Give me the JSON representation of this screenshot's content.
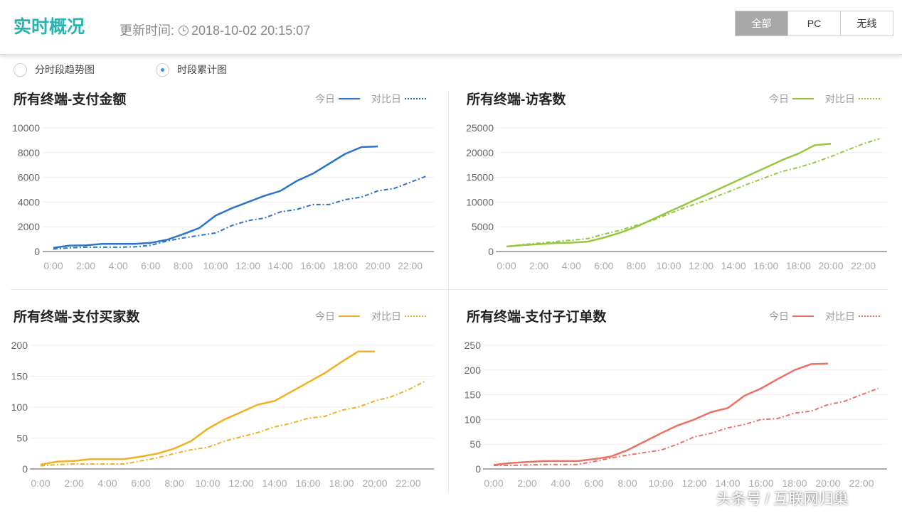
{
  "header": {
    "title": "实时概况",
    "update_label": "更新时间:",
    "update_time": "2018-10-02 20:15:07",
    "segments": [
      "全部",
      "PC",
      "无线"
    ],
    "active_segment": "全部"
  },
  "view_modes": [
    {
      "label": "分时段趋势图",
      "selected": false
    },
    {
      "label": "时段累计图",
      "selected": true
    }
  ],
  "legend": {
    "today": "今日",
    "compare": "对比日"
  },
  "watermark": "头条号 / 互联网归巢",
  "chart_data": [
    {
      "type": "line",
      "title": "所有终端-支付金额",
      "color": "#2b74c9",
      "x_ticks": [
        "0:00",
        "2:00",
        "4:00",
        "6:00",
        "8:00",
        "10:00",
        "12:00",
        "14:00",
        "16:00",
        "18:00",
        "20:00",
        "22:00"
      ],
      "y_ticks": [
        0,
        2000,
        4000,
        6000,
        8000,
        10000
      ],
      "ylim": [
        0,
        10000
      ],
      "grid": true,
      "series": [
        {
          "name": "今日",
          "style": "solid",
          "x_hours": [
            0,
            1,
            2,
            3,
            4,
            5,
            6,
            7,
            8,
            9,
            10,
            11,
            12,
            13,
            14,
            15,
            16,
            17,
            18,
            19,
            20
          ],
          "values": [
            300,
            480,
            500,
            620,
            620,
            620,
            700,
            950,
            1400,
            1900,
            2900,
            3500,
            4000,
            4500,
            4900,
            5700,
            6300,
            7100,
            7900,
            8450,
            8500
          ]
        },
        {
          "name": "对比日",
          "style": "dashdot",
          "x_hours": [
            0,
            1,
            2,
            3,
            4,
            5,
            6,
            7,
            8,
            9,
            10,
            11,
            12,
            13,
            14,
            15,
            16,
            17,
            18,
            19,
            20,
            21,
            22,
            23
          ],
          "values": [
            200,
            300,
            350,
            350,
            350,
            380,
            500,
            850,
            1100,
            1300,
            1500,
            2100,
            2500,
            2700,
            3200,
            3400,
            3800,
            3800,
            4200,
            4400,
            4900,
            5100,
            5600,
            6100
          ]
        }
      ]
    },
    {
      "type": "line",
      "title": "所有终端-访客数",
      "color": "#95c840",
      "x_ticks": [
        "0:00",
        "2:00",
        "4:00",
        "6:00",
        "8:00",
        "10:00",
        "12:00",
        "14:00",
        "16:00",
        "18:00",
        "20:00",
        "22:00"
      ],
      "y_ticks": [
        0,
        5000,
        10000,
        15000,
        20000,
        25000
      ],
      "ylim": [
        0,
        25000
      ],
      "grid": true,
      "series": [
        {
          "name": "今日",
          "style": "solid",
          "x_hours": [
            0,
            1,
            2,
            3,
            4,
            5,
            6,
            7,
            8,
            9,
            10,
            11,
            12,
            13,
            14,
            15,
            16,
            17,
            18,
            19,
            20
          ],
          "values": [
            1000,
            1300,
            1500,
            1700,
            1800,
            2000,
            2800,
            3800,
            5000,
            6500,
            8000,
            9500,
            11000,
            12500,
            14000,
            15500,
            17000,
            18500,
            19800,
            21500,
            21800
          ]
        },
        {
          "name": "对比日",
          "style": "dashdot",
          "x_hours": [
            0,
            1,
            2,
            3,
            4,
            5,
            6,
            7,
            8,
            9,
            10,
            11,
            12,
            13,
            14,
            15,
            16,
            17,
            18,
            19,
            20,
            21,
            22,
            23
          ],
          "values": [
            1000,
            1400,
            1700,
            2000,
            2300,
            2600,
            3500,
            4300,
            5300,
            6300,
            7600,
            8900,
            10000,
            11200,
            12500,
            13800,
            15000,
            16200,
            17000,
            18000,
            19200,
            20500,
            21800,
            22800
          ]
        }
      ]
    },
    {
      "type": "line",
      "title": "所有终端-支付买家数",
      "color": "#f0b022",
      "x_ticks": [
        "0:00",
        "2:00",
        "4:00",
        "6:00",
        "8:00",
        "10:00",
        "12:00",
        "14:00",
        "16:00",
        "18:00",
        "20:00",
        "22:00"
      ],
      "y_ticks": [
        0,
        50,
        100,
        150,
        200
      ],
      "ylim": [
        0,
        200
      ],
      "grid": true,
      "series": [
        {
          "name": "今日",
          "style": "solid",
          "x_hours": [
            0,
            1,
            2,
            3,
            4,
            5,
            6,
            7,
            8,
            9,
            10,
            11,
            12,
            13,
            14,
            15,
            16,
            17,
            18,
            19,
            20
          ],
          "values": [
            7,
            12,
            13,
            16,
            16,
            16,
            20,
            25,
            33,
            45,
            65,
            80,
            92,
            104,
            110,
            125,
            140,
            155,
            173,
            190,
            190
          ]
        },
        {
          "name": "对比日",
          "style": "dashdot",
          "x_hours": [
            0,
            1,
            2,
            3,
            4,
            5,
            6,
            7,
            8,
            9,
            10,
            11,
            12,
            13,
            14,
            15,
            16,
            17,
            18,
            19,
            20,
            21,
            22,
            23
          ],
          "values": [
            5,
            7,
            8,
            8,
            8,
            8,
            13,
            18,
            25,
            31,
            35,
            45,
            52,
            59,
            68,
            74,
            82,
            85,
            95,
            100,
            110,
            117,
            128,
            142
          ]
        }
      ]
    },
    {
      "type": "line",
      "title": "所有终端-支付子订单数",
      "color": "#ec7063",
      "x_ticks": [
        "0:00",
        "2:00",
        "4:00",
        "6:00",
        "8:00",
        "10:00",
        "12:00",
        "14:00",
        "16:00",
        "18:00",
        "20:00",
        "22:00"
      ],
      "y_ticks": [
        0,
        50,
        100,
        150,
        200,
        250
      ],
      "ylim": [
        0,
        250
      ],
      "grid": true,
      "series": [
        {
          "name": "今日",
          "style": "solid",
          "x_hours": [
            0,
            1,
            2,
            3,
            4,
            5,
            6,
            7,
            8,
            9,
            10,
            11,
            12,
            13,
            14,
            15,
            16,
            17,
            18,
            19,
            20
          ],
          "values": [
            8,
            12,
            14,
            16,
            16,
            16,
            20,
            25,
            38,
            55,
            72,
            88,
            100,
            115,
            123,
            148,
            163,
            182,
            200,
            212,
            213
          ]
        },
        {
          "name": "对比日",
          "style": "dashdot",
          "x_hours": [
            0,
            1,
            2,
            3,
            4,
            5,
            6,
            7,
            8,
            9,
            10,
            11,
            12,
            13,
            14,
            15,
            16,
            17,
            18,
            19,
            20,
            21,
            22,
            23
          ],
          "values": [
            7,
            7,
            8,
            9,
            9,
            9,
            15,
            22,
            28,
            33,
            38,
            50,
            65,
            72,
            83,
            90,
            100,
            102,
            113,
            117,
            130,
            137,
            150,
            163
          ]
        }
      ]
    }
  ]
}
